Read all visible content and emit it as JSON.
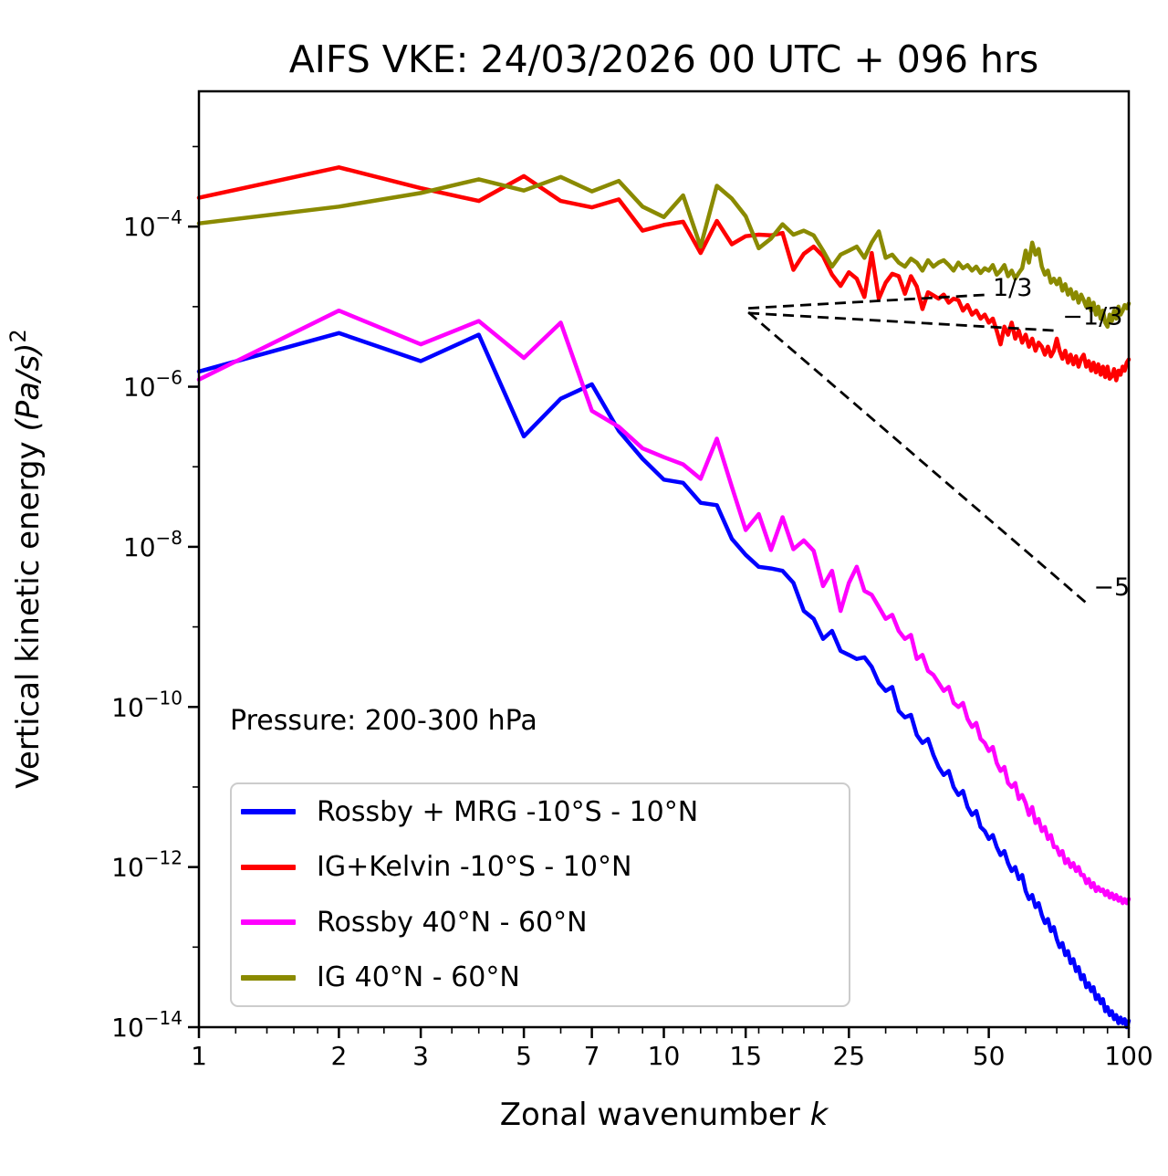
{
  "title": "AIFS VKE: 24/03/2026 00 UTC + 096 hrs",
  "annotation": {
    "pressure": "Pressure: 200-300 hPa"
  },
  "legend": {
    "items": [
      {
        "label": "Rossby + MRG -10°S - 10°N",
        "color": "#0000ff"
      },
      {
        "label": "IG+Kelvin -10°S - 10°N",
        "color": "#ff0000"
      },
      {
        "label": "Rossby 40°N - 60°N",
        "color": "#ff00ff"
      },
      {
        "label": "IG 40°N - 60°N",
        "color": "#8a8a00"
      }
    ]
  },
  "chart_data": {
    "type": "line",
    "title": "AIFS VKE: 24/03/2026 00 UTC + 096 hrs",
    "xlabel": "Zonal wavenumber k",
    "ylabel": "Vertical kinetic energy (Pa/s)^2",
    "xlabel_parts": {
      "prefix": "Zonal wavenumber ",
      "variable": "k"
    },
    "ylabel_parts": {
      "prefix": "Vertical kinetic energy ",
      "unit": "(Pa/s)",
      "exponent": "2"
    },
    "x_scale": "log",
    "y_scale": "log",
    "xlim": [
      1,
      100
    ],
    "ylim": [
      1e-14,
      0.005
    ],
    "grid": false,
    "legend_position": "lower left",
    "x_ticks": [
      1,
      2,
      3,
      5,
      7,
      10,
      15,
      25,
      50,
      100
    ],
    "x_minor_ticks": [
      1.2,
      1.4,
      1.6,
      1.8,
      2.2,
      2.5,
      3.5,
      4,
      4.5,
      6,
      8,
      9,
      11,
      12,
      13,
      14,
      16,
      18,
      20,
      22,
      30,
      35,
      40,
      45,
      60,
      70,
      80,
      90
    ],
    "y_tick_exponents": [
      -4,
      -6,
      -8,
      -10,
      -12,
      -14
    ],
    "y_minor_tick_exponents": [
      -3,
      -5,
      -7,
      -9,
      -11,
      -13
    ],
    "x_values": [
      1,
      2,
      3,
      4,
      5,
      6,
      7,
      8,
      9,
      10,
      11,
      12,
      13,
      14,
      15,
      16,
      17,
      18,
      19,
      20,
      21,
      22,
      23,
      24,
      25,
      26,
      27,
      28,
      29,
      30,
      31,
      32,
      33,
      34,
      35,
      36,
      37,
      38,
      39,
      40,
      41,
      42,
      43,
      44,
      45,
      46,
      47,
      48,
      49,
      50,
      51,
      52,
      53,
      54,
      55,
      56,
      57,
      58,
      59,
      60,
      61,
      62,
      63,
      64,
      65,
      66,
      67,
      68,
      69,
      70,
      71,
      72,
      73,
      74,
      75,
      76,
      77,
      78,
      79,
      80,
      81,
      82,
      83,
      84,
      85,
      86,
      87,
      88,
      89,
      90,
      91,
      92,
      93,
      94,
      95,
      96,
      97,
      98,
      99,
      100
    ],
    "series": [
      {
        "name": "Rossby + MRG -10°S - 10°N",
        "color": "#0000ff",
        "log10_values": [
          -5.81,
          -5.33,
          -5.68,
          -5.35,
          -6.62,
          -6.15,
          -5.97,
          -6.55,
          -6.9,
          -7.16,
          -7.2,
          -7.45,
          -7.48,
          -7.9,
          -8.1,
          -8.25,
          -8.27,
          -8.3,
          -8.45,
          -8.8,
          -8.9,
          -9.15,
          -9.05,
          -9.3,
          -9.35,
          -9.4,
          -9.38,
          -9.5,
          -9.7,
          -9.8,
          -9.75,
          -10.05,
          -10.13,
          -10.1,
          -10.35,
          -10.45,
          -10.4,
          -10.6,
          -10.75,
          -10.85,
          -10.8,
          -11.0,
          -11.1,
          -11.05,
          -11.25,
          -11.35,
          -11.3,
          -11.5,
          -11.55,
          -11.65,
          -11.6,
          -11.75,
          -11.85,
          -11.8,
          -11.95,
          -12.05,
          -12.0,
          -12.15,
          -12.1,
          -12.3,
          -12.4,
          -12.35,
          -12.5,
          -12.45,
          -12.6,
          -12.7,
          -12.65,
          -12.8,
          -12.75,
          -12.9,
          -13.0,
          -12.95,
          -13.1,
          -13.05,
          -13.2,
          -13.15,
          -13.3,
          -13.25,
          -13.4,
          -13.35,
          -13.5,
          -13.45,
          -13.55,
          -13.5,
          -13.65,
          -13.6,
          -13.7,
          -13.65,
          -13.8,
          -13.75,
          -13.85,
          -13.8,
          -13.9,
          -13.85,
          -13.95,
          -13.88,
          -13.95,
          -13.9,
          -14.0,
          -13.92
        ]
      },
      {
        "name": "IG+Kelvin -10°S - 10°N",
        "color": "#ff0000",
        "log10_values": [
          -3.64,
          -3.26,
          -3.52,
          -3.68,
          -3.37,
          -3.68,
          -3.76,
          -3.66,
          -4.05,
          -3.98,
          -3.94,
          -4.33,
          -3.93,
          -4.22,
          -4.12,
          -4.1,
          -4.11,
          -4.08,
          -4.54,
          -4.34,
          -4.25,
          -4.37,
          -4.6,
          -4.74,
          -4.57,
          -4.65,
          -4.88,
          -4.33,
          -4.9,
          -4.7,
          -4.59,
          -4.62,
          -4.84,
          -4.62,
          -4.75,
          -5.03,
          -4.82,
          -4.86,
          -4.9,
          -4.85,
          -4.95,
          -4.9,
          -4.92,
          -5.05,
          -4.98,
          -5.1,
          -5.05,
          -5.15,
          -5.1,
          -5.2,
          -5.15,
          -5.3,
          -5.47,
          -5.25,
          -5.35,
          -5.2,
          -5.4,
          -5.3,
          -5.45,
          -5.35,
          -5.5,
          -5.4,
          -5.55,
          -5.45,
          -5.5,
          -5.6,
          -5.5,
          -5.62,
          -5.55,
          -5.4,
          -5.55,
          -5.65,
          -5.55,
          -5.7,
          -5.6,
          -5.72,
          -5.62,
          -5.75,
          -5.65,
          -5.6,
          -5.75,
          -5.68,
          -5.8,
          -5.7,
          -5.82,
          -5.72,
          -5.85,
          -5.75,
          -5.88,
          -5.75,
          -5.9,
          -5.87,
          -5.78,
          -5.92,
          -5.8,
          -5.85,
          -5.75,
          -5.8,
          -5.7,
          -5.66
        ]
      },
      {
        "name": "Rossby 40°N - 60°N",
        "color": "#ff00ff",
        "log10_values": [
          -5.91,
          -5.05,
          -5.47,
          -5.18,
          -5.64,
          -5.2,
          -6.3,
          -6.5,
          -6.77,
          -6.88,
          -6.97,
          -7.15,
          -6.65,
          -7.25,
          -7.79,
          -7.59,
          -8.04,
          -7.63,
          -8.03,
          -7.92,
          -8.05,
          -8.49,
          -8.3,
          -8.8,
          -8.45,
          -8.25,
          -8.55,
          -8.6,
          -8.75,
          -8.9,
          -8.85,
          -9.05,
          -9.15,
          -9.1,
          -9.4,
          -9.35,
          -9.55,
          -9.6,
          -9.7,
          -9.8,
          -9.75,
          -9.95,
          -10.0,
          -9.95,
          -10.15,
          -10.25,
          -10.2,
          -10.4,
          -10.45,
          -10.55,
          -10.5,
          -10.7,
          -10.8,
          -10.75,
          -10.95,
          -11.0,
          -10.95,
          -11.15,
          -11.1,
          -11.2,
          -11.35,
          -11.25,
          -11.45,
          -11.4,
          -11.55,
          -11.5,
          -11.65,
          -11.6,
          -11.75,
          -11.75,
          -11.85,
          -11.8,
          -11.95,
          -11.9,
          -12.0,
          -11.95,
          -12.05,
          -12.0,
          -12.1,
          -12.1,
          -12.2,
          -12.15,
          -12.25,
          -12.2,
          -12.3,
          -12.25,
          -12.3,
          -12.28,
          -12.35,
          -12.3,
          -12.38,
          -12.33,
          -12.4,
          -12.35,
          -12.42,
          -12.38,
          -12.45,
          -12.4,
          -12.45,
          -12.4
        ]
      },
      {
        "name": "IG 40°N - 60°N",
        "color": "#8a8a00",
        "log10_values": [
          -3.96,
          -3.75,
          -3.58,
          -3.41,
          -3.55,
          -3.38,
          -3.56,
          -3.43,
          -3.75,
          -3.88,
          -3.61,
          -4.25,
          -3.49,
          -3.65,
          -3.87,
          -4.27,
          -4.15,
          -3.97,
          -4.1,
          -4.05,
          -4.11,
          -4.3,
          -4.5,
          -4.35,
          -4.3,
          -4.25,
          -4.39,
          -4.2,
          -4.06,
          -4.39,
          -4.35,
          -4.45,
          -4.5,
          -4.4,
          -4.45,
          -4.55,
          -4.42,
          -4.5,
          -4.45,
          -4.42,
          -4.48,
          -4.55,
          -4.45,
          -4.52,
          -4.48,
          -4.55,
          -4.5,
          -4.58,
          -4.52,
          -4.55,
          -4.48,
          -4.6,
          -4.55,
          -4.48,
          -4.62,
          -4.55,
          -4.65,
          -4.58,
          -4.52,
          -4.3,
          -4.45,
          -4.2,
          -4.35,
          -4.28,
          -4.5,
          -4.6,
          -4.55,
          -4.7,
          -4.65,
          -4.72,
          -4.65,
          -4.8,
          -4.72,
          -4.85,
          -4.78,
          -4.9,
          -4.82,
          -4.95,
          -4.85,
          -4.92,
          -5.0,
          -4.9,
          -5.05,
          -4.95,
          -5.1,
          -5.0,
          -5.15,
          -5.05,
          -5.2,
          -5.25,
          -5.1,
          -5.18,
          -5.05,
          -5.15,
          -5.0,
          -5.1,
          -5.05,
          -4.98,
          -5.02,
          -4.96
        ]
      }
    ],
    "reference_lines": [
      {
        "label": "1/3",
        "x": [
          15.2,
          50
        ],
        "log10_values": [
          -5.02,
          -4.85
        ],
        "label_x": 51,
        "label_log10_y": -4.78
      },
      {
        "label": "-1/3",
        "x": [
          15.2,
          70
        ],
        "log10_values": [
          -5.08,
          -5.3
        ],
        "label_x": 72,
        "label_log10_y": -5.14
      },
      {
        "label": "-5",
        "x": [
          15.2,
          81
        ],
        "log10_values": [
          -5.07,
          -8.7
        ],
        "label_x": 84,
        "label_log10_y": -8.52
      }
    ]
  }
}
